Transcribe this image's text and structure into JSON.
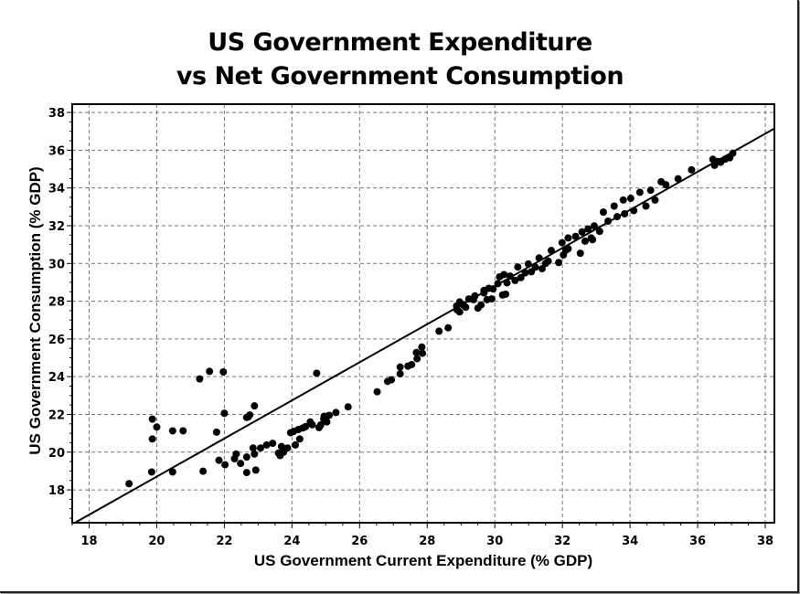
{
  "chart_data": {
    "type": "scatter",
    "title": [
      "US Government Expenditure",
      "vs Net Government Consumption"
    ],
    "xlabel": "US Government Current Expenditure (% GDP)",
    "ylabel": "US Government Consumption (% GDP)",
    "xlim": [
      17.5,
      38.27
    ],
    "ylim": [
      16.26,
      38.44
    ],
    "xticks": [
      18,
      20,
      22,
      24,
      26,
      28,
      30,
      32,
      34,
      36,
      38
    ],
    "yticks": [
      18,
      20,
      22,
      24,
      26,
      28,
      30,
      32,
      34,
      36,
      38
    ],
    "grid": true,
    "legend": "none",
    "series": [
      {
        "name": "observations",
        "marker": "filled-circle",
        "color": "#000000",
        "points": [
          [
            19.18,
            18.33
          ],
          [
            19.85,
            18.95
          ],
          [
            19.87,
            20.7
          ],
          [
            19.87,
            21.75
          ],
          [
            20.0,
            21.33
          ],
          [
            20.47,
            21.13
          ],
          [
            20.78,
            21.13
          ],
          [
            20.47,
            18.95
          ],
          [
            21.27,
            23.88
          ],
          [
            21.56,
            24.28
          ],
          [
            21.97,
            24.25
          ],
          [
            22.0,
            22.06
          ],
          [
            21.77,
            21.06
          ],
          [
            21.37,
            18.99
          ],
          [
            22.66,
            21.84
          ],
          [
            22.75,
            21.97
          ],
          [
            22.89,
            22.45
          ],
          [
            22.71,
            21.87
          ],
          [
            21.84,
            19.57
          ],
          [
            22.02,
            19.33
          ],
          [
            22.3,
            19.65
          ],
          [
            22.35,
            19.9
          ],
          [
            22.48,
            19.4
          ],
          [
            22.66,
            19.74
          ],
          [
            22.66,
            18.92
          ],
          [
            22.93,
            19.05
          ],
          [
            22.85,
            20.22
          ],
          [
            22.89,
            19.9
          ],
          [
            23.07,
            20.22
          ],
          [
            23.25,
            20.38
          ],
          [
            23.43,
            20.47
          ],
          [
            23.65,
            19.82
          ],
          [
            23.69,
            20.3
          ],
          [
            23.6,
            19.95
          ],
          [
            23.75,
            20.0
          ],
          [
            23.87,
            20.22
          ],
          [
            23.96,
            21.03
          ],
          [
            24.1,
            20.38
          ],
          [
            24.23,
            20.7
          ],
          [
            24.19,
            21.2
          ],
          [
            24.32,
            21.28
          ],
          [
            24.05,
            21.1
          ],
          [
            24.4,
            21.35
          ],
          [
            24.54,
            21.6
          ],
          [
            24.6,
            21.45
          ],
          [
            24.85,
            21.44
          ],
          [
            24.94,
            21.77
          ],
          [
            25.03,
            21.6
          ],
          [
            24.8,
            21.3
          ],
          [
            24.95,
            21.9
          ],
          [
            25.1,
            21.95
          ],
          [
            25.3,
            22.1
          ],
          [
            25.66,
            22.4
          ],
          [
            24.73,
            24.18
          ],
          [
            26.52,
            23.2
          ],
          [
            26.83,
            23.75
          ],
          [
            26.94,
            23.83
          ],
          [
            27.2,
            24.15
          ],
          [
            27.2,
            24.51
          ],
          [
            27.43,
            24.56
          ],
          [
            27.54,
            24.64
          ],
          [
            27.7,
            24.95
          ],
          [
            27.68,
            25.28
          ],
          [
            27.84,
            25.57
          ],
          [
            27.86,
            25.24
          ],
          [
            28.35,
            26.41
          ],
          [
            28.62,
            26.59
          ],
          [
            28.87,
            27.75
          ],
          [
            28.96,
            27.43
          ],
          [
            28.88,
            27.55
          ],
          [
            29.06,
            27.8
          ],
          [
            28.96,
            27.96
          ],
          [
            29.14,
            27.68
          ],
          [
            29.23,
            28.12
          ],
          [
            29.37,
            28.08
          ],
          [
            29.41,
            28.28
          ],
          [
            29.5,
            27.63
          ],
          [
            29.59,
            27.8
          ],
          [
            29.68,
            28.44
          ],
          [
            29.68,
            28.57
          ],
          [
            29.77,
            28.08
          ],
          [
            29.82,
            28.68
          ],
          [
            29.91,
            28.12
          ],
          [
            29.95,
            28.65
          ],
          [
            30.09,
            28.93
          ],
          [
            30.14,
            29.29
          ],
          [
            30.23,
            28.33
          ],
          [
            30.27,
            29.41
          ],
          [
            30.32,
            28.37
          ],
          [
            30.36,
            28.97
          ],
          [
            30.45,
            29.33
          ],
          [
            30.6,
            29.1
          ],
          [
            30.68,
            29.81
          ],
          [
            30.77,
            29.25
          ],
          [
            30.9,
            29.5
          ],
          [
            30.99,
            29.97
          ],
          [
            31.08,
            29.56
          ],
          [
            31.2,
            29.8
          ],
          [
            31.31,
            30.29
          ],
          [
            31.4,
            29.72
          ],
          [
            31.5,
            30.0
          ],
          [
            31.58,
            30.12
          ],
          [
            31.67,
            30.69
          ],
          [
            31.89,
            30.05
          ],
          [
            31.99,
            31.1
          ],
          [
            32.03,
            30.45
          ],
          [
            32.1,
            30.7
          ],
          [
            32.17,
            30.78
          ],
          [
            32.17,
            31.35
          ],
          [
            32.39,
            31.43
          ],
          [
            32.53,
            30.54
          ],
          [
            32.58,
            31.67
          ],
          [
            32.67,
            31.18
          ],
          [
            32.76,
            31.83
          ],
          [
            32.85,
            31.35
          ],
          [
            32.89,
            31.26
          ],
          [
            32.94,
            31.99
          ],
          [
            33.1,
            31.7
          ],
          [
            33.21,
            32.72
          ],
          [
            33.35,
            32.24
          ],
          [
            33.53,
            33.04
          ],
          [
            33.62,
            32.48
          ],
          [
            33.8,
            33.36
          ],
          [
            33.84,
            32.63
          ],
          [
            34.02,
            33.45
          ],
          [
            34.11,
            32.8
          ],
          [
            34.29,
            33.77
          ],
          [
            34.47,
            33.04
          ],
          [
            34.61,
            33.88
          ],
          [
            34.74,
            33.36
          ],
          [
            34.92,
            34.33
          ],
          [
            35.06,
            34.17
          ],
          [
            35.42,
            34.49
          ],
          [
            35.82,
            34.96
          ],
          [
            36.45,
            35.52
          ],
          [
            36.5,
            35.2
          ],
          [
            36.6,
            35.4
          ],
          [
            36.68,
            35.36
          ],
          [
            36.81,
            35.52
          ],
          [
            36.95,
            35.6
          ],
          [
            37.04,
            35.84
          ]
        ]
      }
    ],
    "fit_line": {
      "name": "regression-line",
      "from": [
        17.58,
        16.26
      ],
      "to": [
        38.27,
        37.15
      ]
    }
  }
}
